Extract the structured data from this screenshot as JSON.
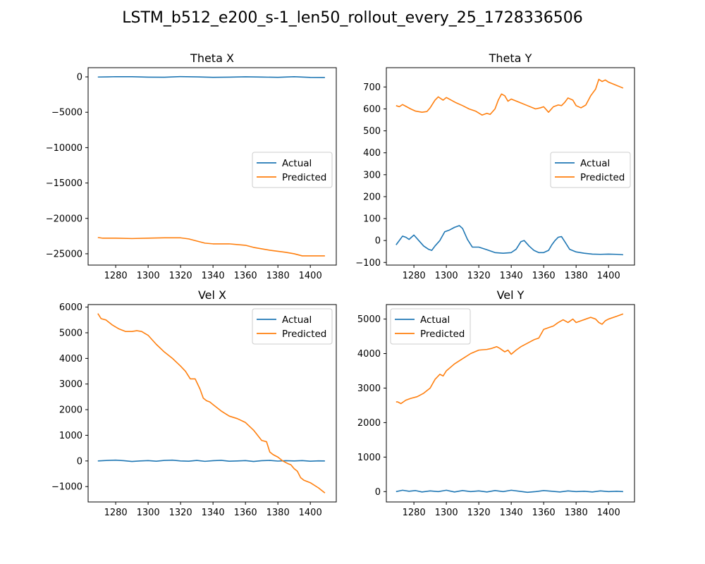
{
  "figure": {
    "title": "LSTM_b512_e200_s-1_len50_rollout_every_25_1728336506"
  },
  "colors": {
    "actual": "#1f77b4",
    "predicted": "#ff7f0e"
  },
  "chart_data": [
    {
      "type": "line",
      "title": "Theta X",
      "xlabel": "",
      "ylabel": "",
      "xlim": [
        1263,
        1416
      ],
      "ylim": [
        -26600,
        1300
      ],
      "xticks": [
        1280,
        1300,
        1320,
        1340,
        1360,
        1380,
        1400
      ],
      "yticks": [
        -25000,
        -20000,
        -15000,
        -10000,
        -5000,
        0
      ],
      "ytick_labels": [
        "−25000",
        "−20000",
        "−15000",
        "−10000",
        "−5000",
        "0"
      ],
      "grid": false,
      "legend": "center-right",
      "series": [
        {
          "name": "Actual",
          "x": [
            1269,
            1275,
            1280,
            1290,
            1300,
            1310,
            1320,
            1330,
            1340,
            1350,
            1360,
            1370,
            1380,
            1390,
            1400,
            1409
          ],
          "y": [
            -20,
            0,
            30,
            20,
            -40,
            -50,
            40,
            0,
            -60,
            -40,
            10,
            -30,
            -60,
            20,
            -80,
            -90
          ]
        },
        {
          "name": "Predicted",
          "x": [
            1269,
            1272,
            1280,
            1290,
            1300,
            1310,
            1320,
            1325,
            1330,
            1335,
            1340,
            1350,
            1355,
            1360,
            1365,
            1370,
            1375,
            1380,
            1385,
            1390,
            1395,
            1400,
            1409
          ],
          "y": [
            -22700,
            -22800,
            -22800,
            -22850,
            -22800,
            -22750,
            -22750,
            -22900,
            -23200,
            -23500,
            -23600,
            -23600,
            -23700,
            -23800,
            -24100,
            -24300,
            -24500,
            -24650,
            -24800,
            -25000,
            -25300,
            -25300,
            -25300
          ]
        }
      ]
    },
    {
      "type": "line",
      "title": "Theta Y",
      "xlabel": "",
      "ylabel": "",
      "xlim": [
        1263,
        1416
      ],
      "ylim": [
        -112,
        788
      ],
      "xticks": [
        1280,
        1300,
        1320,
        1340,
        1360,
        1380,
        1400
      ],
      "yticks": [
        -100,
        0,
        100,
        200,
        300,
        400,
        500,
        600,
        700
      ],
      "ytick_labels": [
        "−100",
        "0",
        "100",
        "200",
        "300",
        "400",
        "500",
        "600",
        "700"
      ],
      "grid": false,
      "legend": "center-right",
      "series": [
        {
          "name": "Actual",
          "x": [
            1269,
            1271,
            1273,
            1275,
            1277,
            1280,
            1283,
            1286,
            1289,
            1291,
            1293,
            1296,
            1299,
            1302,
            1305,
            1308,
            1310,
            1313,
            1316,
            1320,
            1325,
            1330,
            1335,
            1340,
            1343,
            1346,
            1348,
            1351,
            1354,
            1357,
            1360,
            1363,
            1365,
            1367,
            1369,
            1371,
            1373,
            1376,
            1380,
            1385,
            1390,
            1395,
            1400,
            1405,
            1409
          ],
          "y": [
            -20,
            0,
            20,
            15,
            5,
            25,
            0,
            -25,
            -40,
            -45,
            -25,
            0,
            40,
            48,
            60,
            68,
            55,
            5,
            -30,
            -30,
            -42,
            -55,
            -58,
            -55,
            -40,
            -5,
            0,
            -25,
            -45,
            -55,
            -55,
            -45,
            -20,
            0,
            15,
            18,
            -5,
            -40,
            -52,
            -58,
            -62,
            -63,
            -62,
            -63,
            -65
          ]
        },
        {
          "name": "Predicted",
          "x": [
            1269,
            1271,
            1273,
            1275,
            1278,
            1281,
            1285,
            1288,
            1290,
            1293,
            1295,
            1298,
            1300,
            1303,
            1306,
            1310,
            1314,
            1318,
            1322,
            1325,
            1327,
            1330,
            1332,
            1334,
            1336,
            1338,
            1340,
            1345,
            1350,
            1355,
            1358,
            1360,
            1363,
            1366,
            1369,
            1371,
            1373,
            1375,
            1378,
            1380,
            1383,
            1386,
            1389,
            1392,
            1394,
            1396,
            1398,
            1400,
            1404,
            1409
          ],
          "y": [
            615,
            610,
            620,
            612,
            600,
            590,
            585,
            588,
            605,
            640,
            655,
            640,
            652,
            640,
            628,
            615,
            600,
            590,
            572,
            580,
            575,
            600,
            640,
            668,
            660,
            635,
            645,
            630,
            615,
            600,
            605,
            610,
            585,
            610,
            618,
            615,
            630,
            650,
            640,
            615,
            605,
            618,
            660,
            690,
            735,
            725,
            732,
            722,
            710,
            695
          ]
        }
      ]
    },
    {
      "type": "line",
      "title": "Vel X",
      "xlabel": "",
      "ylabel": "",
      "xlim": [
        1263,
        1416
      ],
      "ylim": [
        -1600,
        6100
      ],
      "xticks": [
        1280,
        1300,
        1320,
        1340,
        1360,
        1380,
        1400
      ],
      "yticks": [
        -1000,
        0,
        1000,
        2000,
        3000,
        4000,
        5000,
        6000
      ],
      "ytick_labels": [
        "−1000",
        "0",
        "1000",
        "2000",
        "3000",
        "4000",
        "5000",
        "6000"
      ],
      "grid": false,
      "legend": "upper-right",
      "series": [
        {
          "name": "Actual",
          "x": [
            1269,
            1275,
            1280,
            1285,
            1290,
            1295,
            1300,
            1305,
            1310,
            1315,
            1320,
            1325,
            1330,
            1335,
            1340,
            1345,
            1350,
            1355,
            1360,
            1365,
            1370,
            1375,
            1380,
            1385,
            1390,
            1395,
            1400,
            1405,
            1409
          ],
          "y": [
            0,
            20,
            30,
            10,
            -20,
            0,
            15,
            -10,
            20,
            30,
            0,
            -10,
            20,
            -15,
            10,
            25,
            -10,
            0,
            15,
            -20,
            10,
            20,
            -5,
            10,
            0,
            15,
            -10,
            5,
            0
          ]
        },
        {
          "name": "Predicted",
          "x": [
            1269,
            1271,
            1274,
            1278,
            1282,
            1286,
            1290,
            1293,
            1296,
            1300,
            1305,
            1310,
            1315,
            1320,
            1323,
            1326,
            1329,
            1332,
            1334,
            1336,
            1338,
            1340,
            1345,
            1350,
            1355,
            1360,
            1365,
            1370,
            1373,
            1375,
            1377,
            1380,
            1383,
            1386,
            1388,
            1390,
            1392,
            1394,
            1396,
            1400,
            1405,
            1409
          ],
          "y": [
            5750,
            5550,
            5500,
            5300,
            5150,
            5050,
            5050,
            5080,
            5050,
            4900,
            4550,
            4250,
            4000,
            3700,
            3500,
            3200,
            3200,
            2800,
            2450,
            2350,
            2300,
            2200,
            1950,
            1750,
            1650,
            1500,
            1200,
            800,
            750,
            350,
            250,
            150,
            0,
            -100,
            -150,
            -300,
            -400,
            -650,
            -750,
            -850,
            -1050,
            -1250
          ]
        }
      ]
    },
    {
      "type": "line",
      "title": "Vel Y",
      "xlabel": "",
      "ylabel": "",
      "xlim": [
        1263,
        1416
      ],
      "ylim": [
        -300,
        5420
      ],
      "xticks": [
        1280,
        1300,
        1320,
        1340,
        1360,
        1380,
        1400
      ],
      "yticks": [
        0,
        1000,
        2000,
        3000,
        4000,
        5000
      ],
      "ytick_labels": [
        "0",
        "1000",
        "2000",
        "3000",
        "4000",
        "5000"
      ],
      "grid": false,
      "legend": "upper-left",
      "series": [
        {
          "name": "Actual",
          "x": [
            1269,
            1273,
            1277,
            1281,
            1285,
            1290,
            1295,
            1300,
            1305,
            1310,
            1315,
            1320,
            1325,
            1330,
            1335,
            1340,
            1345,
            1350,
            1355,
            1360,
            1365,
            1370,
            1375,
            1380,
            1385,
            1390,
            1395,
            1400,
            1405,
            1409
          ],
          "y": [
            0,
            40,
            10,
            30,
            -10,
            20,
            0,
            40,
            -10,
            30,
            0,
            20,
            -10,
            30,
            0,
            40,
            10,
            -20,
            0,
            30,
            10,
            -10,
            20,
            0,
            10,
            -10,
            20,
            0,
            10,
            0
          ]
        },
        {
          "name": "Predicted",
          "x": [
            1269,
            1270,
            1272,
            1275,
            1278,
            1282,
            1286,
            1290,
            1293,
            1296,
            1298,
            1300,
            1305,
            1310,
            1315,
            1320,
            1325,
            1328,
            1331,
            1333,
            1336,
            1338,
            1340,
            1343,
            1346,
            1350,
            1354,
            1357,
            1360,
            1363,
            1366,
            1369,
            1372,
            1375,
            1378,
            1380,
            1383,
            1386,
            1389,
            1392,
            1394,
            1396,
            1398,
            1400,
            1405,
            1409
          ],
          "y": [
            2600,
            2600,
            2550,
            2650,
            2700,
            2750,
            2850,
            3000,
            3250,
            3400,
            3350,
            3500,
            3700,
            3850,
            4000,
            4100,
            4120,
            4150,
            4200,
            4150,
            4050,
            4100,
            3980,
            4100,
            4200,
            4300,
            4400,
            4450,
            4700,
            4750,
            4800,
            4900,
            4980,
            4900,
            5000,
            4900,
            4950,
            5000,
            5050,
            5000,
            4900,
            4850,
            4950,
            5000,
            5080,
            5150
          ]
        }
      ]
    }
  ]
}
